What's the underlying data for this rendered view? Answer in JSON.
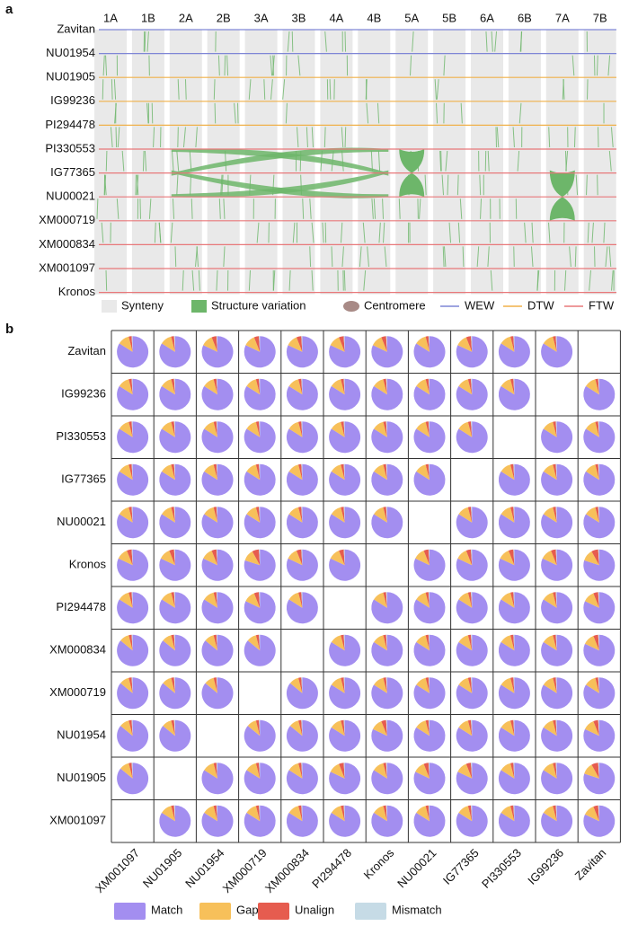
{
  "panel_a": {
    "label": "a",
    "genomes": [
      {
        "name": "Zavitan",
        "color": "#7f86d6"
      },
      {
        "name": "NU01954",
        "color": "#7f86d6"
      },
      {
        "name": "NU01905",
        "color": "#f0b14a"
      },
      {
        "name": "IG99236",
        "color": "#f0b14a"
      },
      {
        "name": "PI294478",
        "color": "#f0b14a"
      },
      {
        "name": "PI330553",
        "color": "#e8787a"
      },
      {
        "name": "IG77365",
        "color": "#e8787a"
      },
      {
        "name": "NU00021",
        "color": "#e8787a"
      },
      {
        "name": "XM000719",
        "color": "#e8787a"
      },
      {
        "name": "XM000834",
        "color": "#e8787a"
      },
      {
        "name": "XM001097",
        "color": "#e8787a"
      },
      {
        "name": "Kronos",
        "color": "#e8787a"
      }
    ],
    "chromosomes": [
      "1A",
      "1B",
      "2A",
      "2B",
      "3A",
      "3B",
      "4A",
      "4B",
      "5A",
      "5B",
      "6A",
      "6B",
      "7A",
      "7B"
    ],
    "legend": [
      {
        "name": "Synteny",
        "color": "#e9e9e9",
        "shape": "box"
      },
      {
        "name": "Structure variation",
        "color": "#6db66a",
        "shape": "box"
      },
      {
        "name": "Centromere",
        "color": "#a88a86",
        "shape": "ellipse"
      },
      {
        "name": "WEW",
        "color": "#7f86d6",
        "shape": "line"
      },
      {
        "name": "DTW",
        "color": "#f0b14a",
        "shape": "line"
      },
      {
        "name": "FTW",
        "color": "#e8787a",
        "shape": "line"
      }
    ]
  },
  "panel_b": {
    "label": "b",
    "rows": [
      "Zavitan",
      "IG99236",
      "PI330553",
      "IG77365",
      "NU00021",
      "Kronos",
      "PI294478",
      "XM000834",
      "XM000719",
      "NU01954",
      "NU01905",
      "XM001097"
    ],
    "columns": [
      "XM001097",
      "NU01905",
      "NU01954",
      "XM000719",
      "XM000834",
      "PI294478",
      "Kronos",
      "NU00021",
      "IG77365",
      "PI330553",
      "IG99236",
      "Zavitan"
    ],
    "segments": [
      {
        "name": "Match",
        "color": "#a38ef0"
      },
      {
        "name": "Gap",
        "color": "#f7c05a"
      },
      {
        "name": "Unalign",
        "color": "#e65c4f"
      },
      {
        "name": "Mismatch",
        "color": "#c6dbe6"
      }
    ],
    "values": [
      [
        [
          84,
          12,
          3,
          1
        ],
        [
          84,
          12,
          3,
          1
        ],
        [
          82,
          12,
          5,
          1
        ],
        [
          82,
          12,
          5,
          1
        ],
        [
          82,
          12,
          5,
          1
        ],
        [
          82,
          12,
          5,
          1
        ],
        [
          82,
          12,
          5,
          1
        ],
        [
          84,
          12,
          3,
          1
        ],
        [
          82,
          12,
          5,
          1
        ],
        [
          84,
          12,
          3,
          1
        ],
        [
          84,
          12,
          3,
          1
        ],
        null
      ],
      [
        [
          84,
          12,
          3,
          1
        ],
        [
          84,
          12,
          3,
          1
        ],
        [
          84,
          12,
          3,
          1
        ],
        [
          84,
          12,
          3,
          1
        ],
        [
          84,
          12,
          3,
          1
        ],
        [
          84,
          12,
          3,
          1
        ],
        [
          84,
          12,
          3,
          1
        ],
        [
          84,
          12,
          3,
          1
        ],
        [
          84,
          12,
          3,
          1
        ],
        [
          84,
          12,
          3,
          1
        ],
        null,
        [
          84,
          12,
          3,
          1
        ]
      ],
      [
        [
          84,
          12,
          3,
          1
        ],
        [
          84,
          12,
          3,
          1
        ],
        [
          84,
          12,
          3,
          1
        ],
        [
          84,
          12,
          3,
          1
        ],
        [
          84,
          12,
          3,
          1
        ],
        [
          84,
          12,
          3,
          1
        ],
        [
          84,
          12,
          3,
          1
        ],
        [
          84,
          12,
          3,
          1
        ],
        [
          84,
          12,
          3,
          1
        ],
        null,
        [
          84,
          12,
          3,
          1
        ],
        [
          84,
          12,
          3,
          1
        ]
      ],
      [
        [
          84,
          12,
          3,
          1
        ],
        [
          84,
          12,
          3,
          1
        ],
        [
          84,
          12,
          3,
          1
        ],
        [
          84,
          12,
          3,
          1
        ],
        [
          84,
          12,
          3,
          1
        ],
        [
          84,
          12,
          3,
          1
        ],
        [
          84,
          12,
          3,
          1
        ],
        [
          84,
          12,
          3,
          1
        ],
        null,
        [
          84,
          12,
          3,
          1
        ],
        [
          84,
          12,
          3,
          1
        ],
        [
          84,
          12,
          3,
          1
        ]
      ],
      [
        [
          84,
          12,
          3,
          1
        ],
        [
          84,
          12,
          3,
          1
        ],
        [
          84,
          12,
          3,
          1
        ],
        [
          84,
          12,
          3,
          1
        ],
        [
          84,
          12,
          3,
          1
        ],
        [
          84,
          12,
          3,
          1
        ],
        [
          84,
          12,
          3,
          1
        ],
        null,
        [
          84,
          12,
          3,
          1
        ],
        [
          84,
          12,
          3,
          1
        ],
        [
          84,
          12,
          3,
          1
        ],
        [
          84,
          12,
          3,
          1
        ]
      ],
      [
        [
          82,
          12,
          5,
          1
        ],
        [
          82,
          12,
          5,
          1
        ],
        [
          82,
          12,
          5,
          1
        ],
        [
          80,
          12,
          7,
          1
        ],
        [
          82,
          12,
          5,
          1
        ],
        [
          82,
          12,
          5,
          1
        ],
        null,
        [
          82,
          12,
          5,
          1
        ],
        [
          82,
          12,
          5,
          1
        ],
        [
          82,
          12,
          5,
          1
        ],
        [
          82,
          12,
          5,
          1
        ],
        [
          80,
          12,
          7,
          1
        ]
      ],
      [
        [
          84,
          12,
          3,
          1
        ],
        [
          84,
          12,
          3,
          1
        ],
        [
          84,
          12,
          3,
          1
        ],
        [
          82,
          12,
          5,
          1
        ],
        [
          84,
          12,
          3,
          1
        ],
        null,
        [
          84,
          12,
          3,
          1
        ],
        [
          84,
          12,
          3,
          1
        ],
        [
          84,
          12,
          3,
          1
        ],
        [
          84,
          12,
          3,
          1
        ],
        [
          84,
          12,
          3,
          1
        ],
        [
          82,
          12,
          5,
          1
        ]
      ],
      [
        [
          86,
          10,
          3,
          1
        ],
        [
          86,
          10,
          3,
          1
        ],
        [
          86,
          10,
          3,
          1
        ],
        [
          86,
          10,
          3,
          1
        ],
        null,
        [
          84,
          12,
          3,
          1
        ],
        [
          84,
          12,
          3,
          1
        ],
        [
          84,
          12,
          3,
          1
        ],
        [
          84,
          12,
          3,
          1
        ],
        [
          84,
          12,
          3,
          1
        ],
        [
          84,
          12,
          3,
          1
        ],
        [
          82,
          12,
          5,
          1
        ]
      ],
      [
        [
          86,
          10,
          3,
          1
        ],
        [
          86,
          10,
          3,
          1
        ],
        [
          86,
          10,
          3,
          1
        ],
        null,
        [
          86,
          10,
          3,
          1
        ],
        [
          84,
          12,
          3,
          1
        ],
        [
          84,
          12,
          3,
          1
        ],
        [
          84,
          12,
          3,
          1
        ],
        [
          84,
          12,
          3,
          1
        ],
        [
          84,
          12,
          3,
          1
        ],
        [
          84,
          12,
          3,
          1
        ],
        [
          84,
          12,
          3,
          1
        ]
      ],
      [
        [
          86,
          10,
          3,
          1
        ],
        [
          86,
          10,
          3,
          1
        ],
        null,
        [
          86,
          10,
          3,
          1
        ],
        [
          86,
          10,
          3,
          1
        ],
        [
          84,
          12,
          3,
          1
        ],
        [
          82,
          12,
          5,
          1
        ],
        [
          84,
          12,
          3,
          1
        ],
        [
          84,
          12,
          3,
          1
        ],
        [
          84,
          12,
          3,
          1
        ],
        [
          84,
          12,
          3,
          1
        ],
        [
          82,
          12,
          5,
          1
        ]
      ],
      [
        [
          86,
          10,
          3,
          1
        ],
        null,
        [
          84,
          12,
          3,
          1
        ],
        [
          84,
          12,
          3,
          1
        ],
        [
          84,
          12,
          3,
          1
        ],
        [
          82,
          12,
          5,
          1
        ],
        [
          84,
          12,
          3,
          1
        ],
        [
          82,
          12,
          5,
          1
        ],
        [
          82,
          12,
          5,
          1
        ],
        [
          84,
          12,
          3,
          1
        ],
        [
          84,
          12,
          3,
          1
        ],
        [
          80,
          12,
          7,
          1
        ]
      ],
      [
        null,
        [
          84,
          12,
          3,
          1
        ],
        [
          84,
          12,
          3,
          1
        ],
        [
          84,
          12,
          3,
          1
        ],
        [
          84,
          12,
          3,
          1
        ],
        [
          84,
          12,
          3,
          1
        ],
        [
          84,
          12,
          3,
          1
        ],
        [
          84,
          12,
          3,
          1
        ],
        [
          84,
          12,
          3,
          1
        ],
        [
          84,
          12,
          3,
          1
        ],
        [
          84,
          12,
          3,
          1
        ],
        [
          82,
          12,
          5,
          1
        ]
      ]
    ]
  }
}
